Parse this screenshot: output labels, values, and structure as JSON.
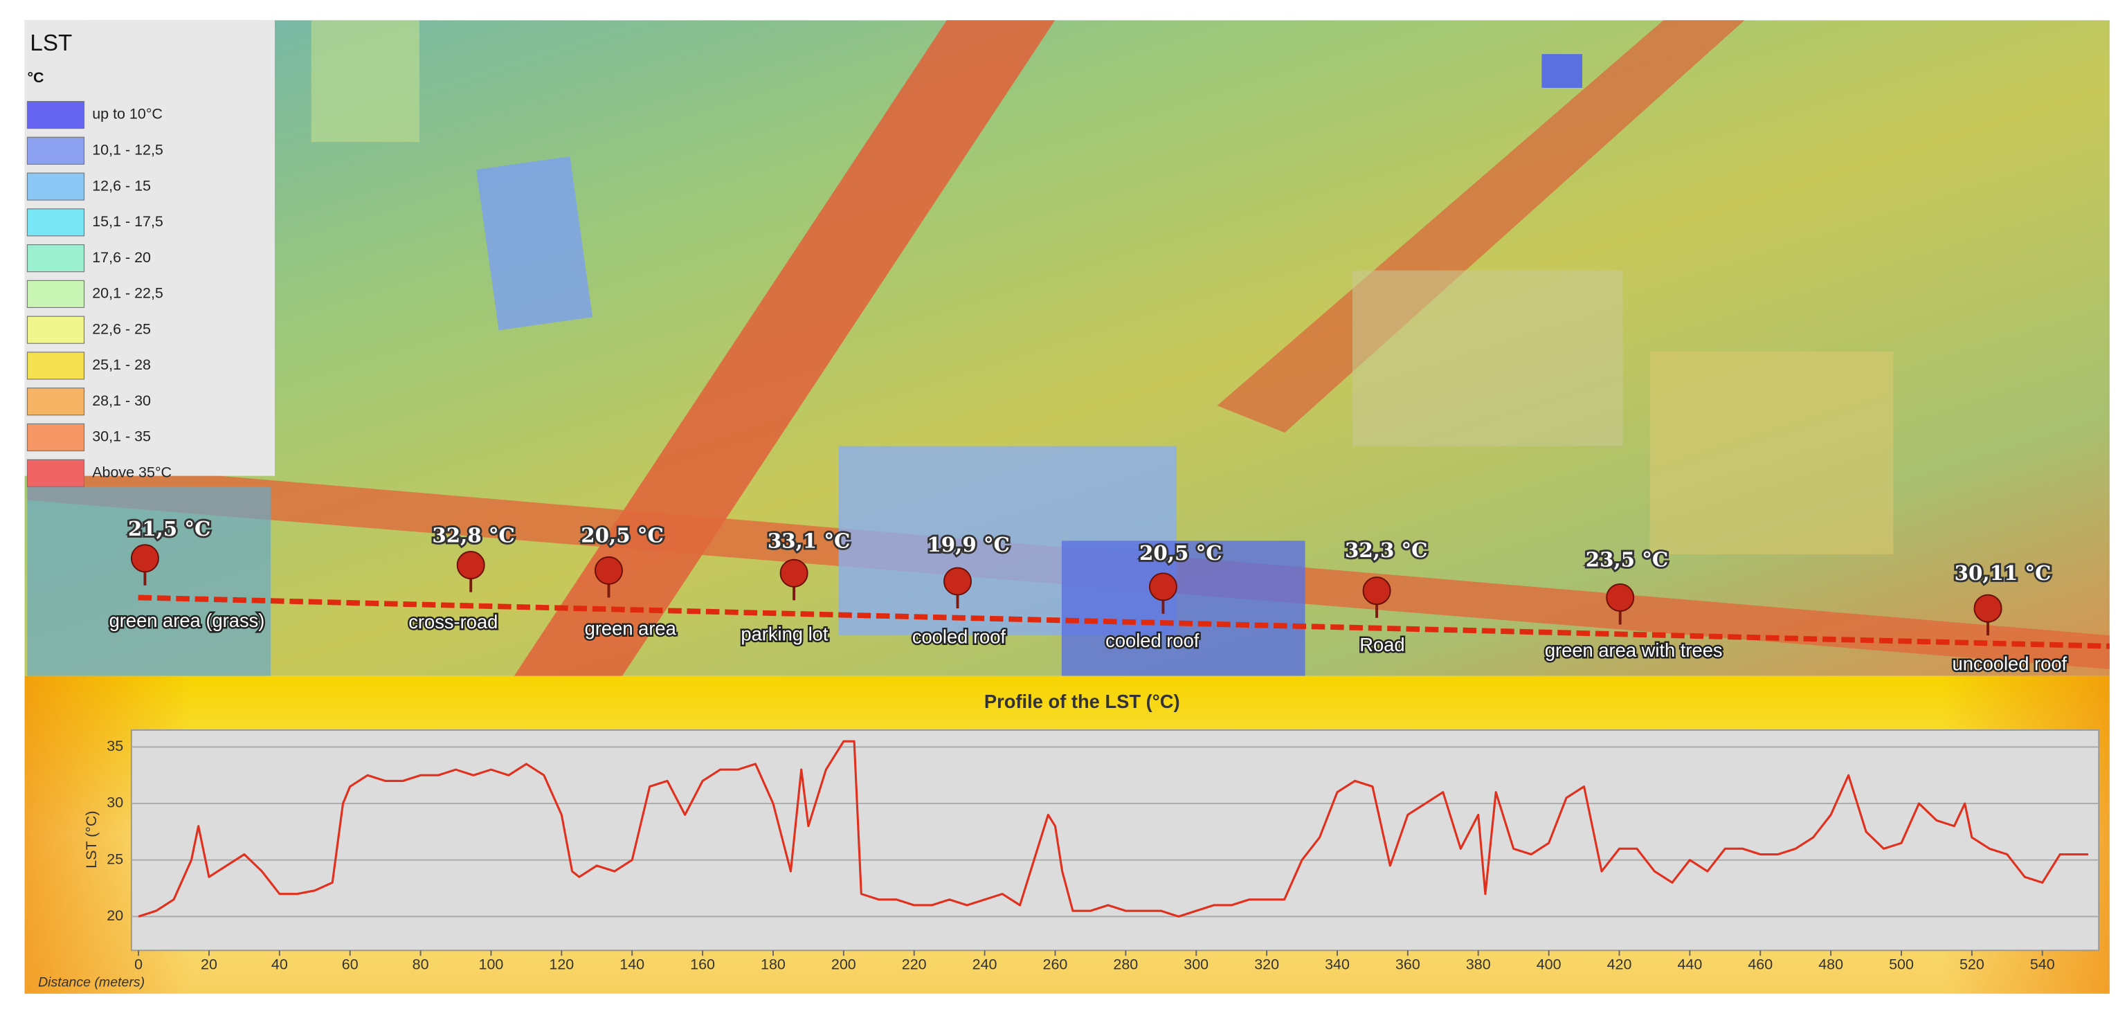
{
  "legend": {
    "title": "LST",
    "unit": "°C",
    "items": [
      {
        "label": "up to 10°C",
        "color": "#6464f0"
      },
      {
        "label": "10,1 - 12,5",
        "color": "#8ca0f0"
      },
      {
        "label": "12,6 - 15",
        "color": "#8cc8f5"
      },
      {
        "label": "15,1 - 17,5",
        "color": "#78e6f5"
      },
      {
        "label": "17,6 - 20",
        "color": "#9cf0d2"
      },
      {
        "label": "20,1 - 22,5",
        "color": "#c8f5b4"
      },
      {
        "label": "22,6 - 25",
        "color": "#f0f58c"
      },
      {
        "label": "25,1 - 28",
        "color": "#f5e150"
      },
      {
        "label": "28,1 - 30",
        "color": "#f5b464"
      },
      {
        "label": "30,1 - 35",
        "color": "#f59664"
      },
      {
        "label": "Above 35°C",
        "color": "#f06464"
      }
    ]
  },
  "pins": [
    {
      "value": "21,5 °C",
      "place": "green area (grass)"
    },
    {
      "value": "32,8 °C",
      "place": "cross-road"
    },
    {
      "value": "20,5 °C",
      "place": "green area"
    },
    {
      "value": "33,1 °C",
      "place": "parking lot"
    },
    {
      "value": "19,9 °C",
      "place": "cooled roof"
    },
    {
      "value": "20,5 °C",
      "place": "cooled roof"
    },
    {
      "value": "32,3 °C",
      "place": "Road"
    },
    {
      "value": "23,5 °C",
      "place": "green area with trees"
    },
    {
      "value": "30,11 °C",
      "place": "uncooled roof"
    }
  ],
  "chart_data": {
    "type": "line",
    "title": "Profile of the LST (°C)",
    "x_label": "Distance (meters)",
    "y_label": "LST (°C)",
    "color": "#e0301e",
    "grid": true,
    "x": [
      0,
      5,
      10,
      15,
      17,
      20,
      25,
      30,
      35,
      40,
      45,
      50,
      55,
      58,
      60,
      65,
      70,
      75,
      80,
      85,
      90,
      95,
      100,
      105,
      110,
      115,
      120,
      123,
      125,
      130,
      135,
      140,
      145,
      150,
      155,
      160,
      165,
      170,
      175,
      180,
      185,
      188,
      190,
      195,
      200,
      203,
      205,
      210,
      215,
      220,
      225,
      230,
      235,
      240,
      245,
      250,
      255,
      258,
      260,
      262,
      265,
      270,
      275,
      280,
      285,
      290,
      295,
      300,
      305,
      310,
      315,
      320,
      325,
      330,
      335,
      340,
      345,
      350,
      355,
      360,
      365,
      370,
      375,
      380,
      382,
      385,
      390,
      395,
      400,
      405,
      410,
      415,
      420,
      425,
      430,
      435,
      440,
      445,
      450,
      455,
      460,
      465,
      470,
      475,
      480,
      485,
      490,
      495,
      500,
      505,
      510,
      515,
      518,
      520,
      525,
      530,
      535,
      540,
      545,
      550,
      553
    ],
    "values": [
      20,
      20.5,
      21.5,
      25,
      28,
      23.5,
      24.5,
      25.5,
      24,
      22,
      22,
      22.3,
      23,
      30,
      31.5,
      32.5,
      32,
      32,
      32.5,
      32.5,
      33,
      32.5,
      33,
      32.5,
      33.5,
      32.5,
      29,
      24,
      23.5,
      24.5,
      24,
      25,
      31.5,
      32,
      29,
      32,
      33,
      33,
      33.5,
      30,
      24,
      33,
      28,
      33,
      35.5,
      35.5,
      22,
      21.5,
      21.5,
      21,
      21,
      21.5,
      21,
      21.5,
      22,
      21,
      26,
      29,
      28,
      24,
      20.5,
      20.5,
      21,
      20.5,
      20.5,
      20.5,
      20,
      20.5,
      21,
      21,
      21.5,
      21.5,
      21.5,
      25,
      27,
      31,
      32,
      31.5,
      24.5,
      29,
      30,
      31,
      26,
      29,
      22,
      31,
      26,
      25.5,
      26.5,
      30.5,
      31.5,
      24,
      26,
      26,
      24,
      23,
      25,
      24,
      26,
      26,
      25.5,
      25.5,
      26,
      27,
      29,
      32.5,
      27.5,
      26,
      26.5,
      30,
      28.5,
      28,
      30,
      27,
      26,
      25.5,
      23.5,
      23,
      25.5,
      25.5,
      25.5
    ],
    "xlim": [
      -2,
      556
    ],
    "ylim": [
      17,
      36.5
    ],
    "xticks": [
      0,
      20,
      40,
      60,
      80,
      100,
      120,
      140,
      160,
      180,
      200,
      220,
      240,
      260,
      280,
      300,
      320,
      340,
      360,
      380,
      400,
      420,
      440,
      460,
      480,
      500,
      520,
      540
    ],
    "yticks": [
      20,
      25,
      30,
      35
    ]
  }
}
